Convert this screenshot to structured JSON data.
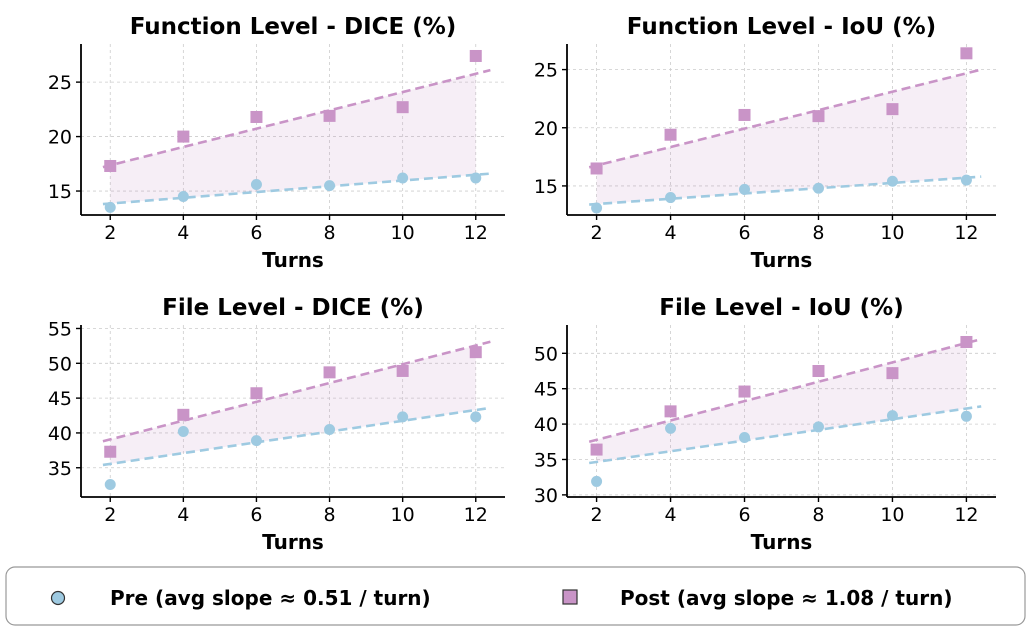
{
  "chart_data": [
    {
      "type": "scatter",
      "title": "Function Level - DICE (%)",
      "xlabel": "Turns",
      "ylabel": "",
      "x": [
        2,
        4,
        6,
        8,
        10,
        12
      ],
      "xlim": [
        1.2,
        12.8
      ],
      "ylim": [
        12.8,
        28.5
      ],
      "xticks": [
        2,
        4,
        6,
        8,
        10,
        12
      ],
      "yticks": [
        15,
        20,
        25
      ],
      "grid": true,
      "series": [
        {
          "name": "Pre",
          "values": [
            13.5,
            14.5,
            15.6,
            15.5,
            16.2,
            16.2
          ],
          "trend": [
            13.8,
            16.6
          ],
          "marker": "circle",
          "color": "#9ecae1"
        },
        {
          "name": "Post",
          "values": [
            17.3,
            20.0,
            21.8,
            21.9,
            22.7,
            27.4
          ],
          "trend": [
            17.2,
            26.1
          ],
          "marker": "square",
          "color": "#c994c7"
        }
      ]
    },
    {
      "type": "scatter",
      "title": "Function Level - IoU (%)",
      "xlabel": "Turns",
      "ylabel": "",
      "x": [
        2,
        4,
        6,
        8,
        10,
        12
      ],
      "xlim": [
        1.2,
        12.8
      ],
      "ylim": [
        12.5,
        27.2
      ],
      "xticks": [
        2,
        4,
        6,
        8,
        10,
        12
      ],
      "yticks": [
        15,
        20,
        25
      ],
      "grid": true,
      "series": [
        {
          "name": "Pre",
          "values": [
            13.1,
            14.0,
            14.7,
            14.8,
            15.4,
            15.5
          ],
          "trend": [
            13.4,
            15.8
          ],
          "marker": "circle",
          "color": "#9ecae1"
        },
        {
          "name": "Post",
          "values": [
            16.5,
            19.4,
            21.1,
            21.0,
            21.6,
            26.4
          ],
          "trend": [
            16.6,
            25.0
          ],
          "marker": "square",
          "color": "#c994c7"
        }
      ]
    },
    {
      "type": "scatter",
      "title": "File Level - DICE (%)",
      "xlabel": "Turns",
      "ylabel": "",
      "x": [
        2,
        4,
        6,
        8,
        10,
        12
      ],
      "xlim": [
        1.2,
        12.8
      ],
      "ylim": [
        30.8,
        55.5
      ],
      "xticks": [
        2,
        4,
        6,
        8,
        10,
        12
      ],
      "yticks": [
        35,
        40,
        45,
        50,
        55
      ],
      "grid": true,
      "series": [
        {
          "name": "Pre",
          "values": [
            32.6,
            40.2,
            38.9,
            40.5,
            42.3,
            42.3
          ],
          "trend": [
            35.4,
            43.6
          ],
          "marker": "circle",
          "color": "#9ecae1"
        },
        {
          "name": "Post",
          "values": [
            37.3,
            42.6,
            45.7,
            48.7,
            48.9,
            51.6
          ],
          "trend": [
            38.8,
            53.1
          ],
          "marker": "square",
          "color": "#c994c7"
        }
      ]
    },
    {
      "type": "scatter",
      "title": "File Level - IoU (%)",
      "xlabel": "Turns",
      "ylabel": "",
      "x": [
        2,
        4,
        6,
        8,
        10,
        12
      ],
      "xlim": [
        1.2,
        12.8
      ],
      "ylim": [
        29.7,
        54.0
      ],
      "xticks": [
        2,
        4,
        6,
        8,
        10,
        12
      ],
      "yticks": [
        30,
        35,
        40,
        45,
        50
      ],
      "grid": true,
      "series": [
        {
          "name": "Pre",
          "values": [
            31.9,
            39.4,
            38.1,
            39.6,
            41.2,
            41.1
          ],
          "trend": [
            34.5,
            42.5
          ],
          "marker": "circle",
          "color": "#9ecae1"
        },
        {
          "name": "Post",
          "values": [
            36.4,
            41.8,
            44.6,
            47.5,
            47.2,
            51.6
          ],
          "trend": [
            37.5,
            52.0
          ],
          "marker": "square",
          "color": "#c994c7"
        }
      ]
    }
  ],
  "legend": {
    "placement": "bottom",
    "items": [
      {
        "label": "Pre  (avg slope ≈ 0.51 / turn)",
        "marker": "circle",
        "color": "#9ecae1"
      },
      {
        "label": "Post  (avg slope ≈ 1.08 / turn)",
        "marker": "square",
        "color": "#c994c7"
      }
    ]
  },
  "colors": {
    "pre": "#9ecae1",
    "post": "#c994c7",
    "fill": "#c994c7",
    "grid": "#cccccc"
  }
}
